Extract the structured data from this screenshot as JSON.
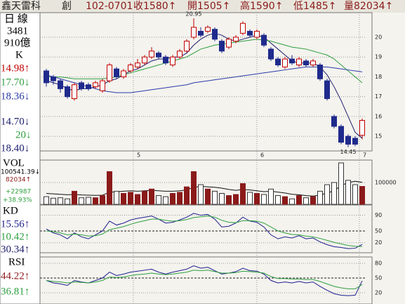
{
  "header": {
    "name": "鑫天雷科",
    "tag": "創",
    "date": "102-0701",
    "close": "收1580↑",
    "open": "開1505↑",
    "high": "高1590↑",
    "low": "低1485↑",
    "volume": "量82034↑"
  },
  "side": {
    "period": "日 線",
    "code": "3481",
    "cap": "910億",
    "k_title": "K",
    "ma1": "14.98↑",
    "ma2": "17.70↓",
    "ma3": "18.36↓",
    "ma4": "14.70↓",
    "ma5": "20↓",
    "ma6": "18.40↓",
    "vol_title": "VOL",
    "vol_avg": "100541.39↓",
    "vol_now": "82034↑",
    "vol_diff": "+22987",
    "vol_pct": "+38.93%",
    "kd_title": "KD",
    "k": "15.56↑",
    "d": "10.42↑",
    "j": "30.34↑",
    "rsi_title": "RSI",
    "rsi1": "44.22↑",
    "rsi2": "36.81↑"
  },
  "chart_data": [
    {
      "type": "candlestick",
      "up_color": "#c00000",
      "down_color": "#1f2a8c",
      "open": [
        18.3,
        18.0,
        17.8,
        17.5,
        16.9,
        17.7,
        17.6,
        17.5,
        17.3,
        17.8,
        18.4,
        18.0,
        18.3,
        18.5,
        18.7,
        19.0,
        19.2,
        19.0,
        18.6,
        19.0,
        19.3,
        20.0,
        20.3,
        20.3,
        20.4,
        19.8,
        19.5,
        19.8,
        20.2,
        20.3,
        20.0,
        20.1,
        19.4,
        18.9,
        18.5,
        18.9,
        18.6,
        18.8,
        18.6,
        18.6,
        17.8,
        16.0,
        15.5,
        15.0,
        14.9,
        15.05
      ],
      "high": [
        18.4,
        18.1,
        17.9,
        17.6,
        17.7,
        17.8,
        17.7,
        17.8,
        17.9,
        18.7,
        18.5,
        18.4,
        18.7,
        18.9,
        19.1,
        19.5,
        19.3,
        19.1,
        19.1,
        19.4,
        19.9,
        20.95,
        20.5,
        20.6,
        20.5,
        19.9,
        20.0,
        20.1,
        20.8,
        20.4,
        20.4,
        20.2,
        19.5,
        19.0,
        19.0,
        19.1,
        19.0,
        18.9,
        18.9,
        18.7,
        17.9,
        16.1,
        15.6,
        15.1,
        15.0,
        15.9
      ],
      "low": [
        17.5,
        17.6,
        17.2,
        16.9,
        16.8,
        17.3,
        17.3,
        17.4,
        17.2,
        17.7,
        17.9,
        17.9,
        18.2,
        18.4,
        18.6,
        18.9,
        18.9,
        18.6,
        18.5,
        18.9,
        19.2,
        19.9,
        20.0,
        20.2,
        19.8,
        19.2,
        19.4,
        19.7,
        20.1,
        20.0,
        19.9,
        19.5,
        18.8,
        18.5,
        18.4,
        18.6,
        18.5,
        18.5,
        18.5,
        17.8,
        16.8,
        15.4,
        14.6,
        14.45,
        14.5,
        14.85
      ],
      "close": [
        17.7,
        17.8,
        17.4,
        17.0,
        17.6,
        17.4,
        17.4,
        17.7,
        17.8,
        18.6,
        18.0,
        18.3,
        18.6,
        18.7,
        19.0,
        19.3,
        19.0,
        18.7,
        19.0,
        19.3,
        19.8,
        20.5,
        20.1,
        20.5,
        19.9,
        19.3,
        19.9,
        20.0,
        20.7,
        20.1,
        20.3,
        19.6,
        18.9,
        18.6,
        18.9,
        18.7,
        18.9,
        18.6,
        18.8,
        17.9,
        16.9,
        15.5,
        14.7,
        14.6,
        14.6,
        15.8
      ],
      "lines": [
        {
          "color": "#1e1e6e",
          "values": [
            17.8,
            17.7,
            17.6,
            17.4,
            17.3,
            17.4,
            17.4,
            17.5,
            17.6,
            17.8,
            17.9,
            18.1,
            18.3,
            18.4,
            18.6,
            18.8,
            18.9,
            18.9,
            19.0,
            19.0,
            19.2,
            19.6,
            19.9,
            20.1,
            20.2,
            20.1,
            19.9,
            19.8,
            19.9,
            20.0,
            20.1,
            20.0,
            19.7,
            19.4,
            19.1,
            18.8,
            18.7,
            18.7,
            18.7,
            18.5,
            18.1,
            17.5,
            16.8,
            16.0,
            15.2,
            14.9
          ]
        },
        {
          "color": "#2e9e3e",
          "values": [
            18.0,
            18.0,
            18.0,
            17.95,
            17.9,
            17.9,
            17.9,
            17.9,
            17.9,
            17.95,
            18.0,
            18.1,
            18.2,
            18.3,
            18.4,
            18.5,
            18.6,
            18.7,
            18.8,
            18.9,
            19.0,
            19.2,
            19.4,
            19.5,
            19.6,
            19.65,
            19.7,
            19.75,
            19.8,
            19.85,
            19.9,
            19.85,
            19.8,
            19.7,
            19.6,
            19.5,
            19.45,
            19.4,
            19.3,
            19.2,
            19.1,
            18.9,
            18.6,
            18.3,
            18.0,
            17.7
          ]
        },
        {
          "color": "#2a3aa8",
          "values": [
            18.1,
            18.0,
            17.9,
            17.8,
            17.7,
            17.6,
            17.5,
            17.4,
            17.3,
            17.25,
            17.2,
            17.2,
            17.2,
            17.25,
            17.3,
            17.35,
            17.4,
            17.45,
            17.5,
            17.55,
            17.6,
            17.7,
            17.75,
            17.8,
            17.85,
            17.9,
            17.95,
            18.0,
            18.05,
            18.1,
            18.15,
            18.2,
            18.25,
            18.3,
            18.35,
            18.4,
            18.45,
            18.5,
            18.5,
            18.5,
            18.5,
            18.45,
            18.4,
            18.35,
            18.3,
            18.25
          ]
        }
      ],
      "annotations": [
        {
          "index": 21,
          "value": 20.95,
          "label": "20.95"
        },
        {
          "index": 43,
          "value": 14.45,
          "label": "14.45"
        }
      ],
      "ylim": [
        14.26,
        21.24
      ],
      "yticks": [
        15,
        16,
        17,
        18,
        19,
        20
      ],
      "xticks": [
        {
          "value": 12.4,
          "label": "5"
        },
        {
          "value": 30,
          "label": "6"
        },
        {
          "value": 44.6,
          "label": "7"
        }
      ]
    },
    {
      "type": "volume",
      "up_color": "#8b1a1a",
      "down_color": "#ffffff",
      "values": [
        35000,
        28000,
        30000,
        25000,
        60000,
        30000,
        32000,
        30000,
        40000,
        150000,
        60000,
        50000,
        55000,
        45000,
        60000,
        70000,
        40000,
        35000,
        50000,
        55000,
        80000,
        150000,
        90000,
        70000,
        60000,
        50000,
        40000,
        45000,
        95000,
        55000,
        50000,
        45000,
        70000,
        40000,
        35000,
        25000,
        40000,
        30000,
        35000,
        60000,
        90000,
        100000,
        190000,
        110000,
        90000,
        82034
      ],
      "ma": [
        {
          "color": "#111111",
          "values": [
            50000,
            48000,
            46000,
            44000,
            45000,
            43000,
            42000,
            41000,
            42000,
            55000,
            58000,
            60000,
            62000,
            60000,
            62000,
            64000,
            62000,
            60000,
            60000,
            62000,
            66000,
            78000,
            82000,
            80000,
            78000,
            74000,
            68000,
            64000,
            68000,
            66000,
            62000,
            58000,
            60000,
            56000,
            52000,
            46000,
            44000,
            40000,
            38000,
            42000,
            52000,
            62000,
            86000,
            100000,
            106000,
            100541
          ]
        }
      ],
      "ylim": [
        0,
        203000
      ],
      "yticks": [
        {
          "value": 100000,
          "label": "100000"
        }
      ]
    },
    {
      "type": "line",
      "series": [
        {
          "color": "#1e1e8e",
          "values": [
            55,
            45,
            40,
            30,
            45,
            35,
            30,
            40,
            50,
            75,
            65,
            70,
            78,
            82,
            85,
            88,
            80,
            70,
            72,
            78,
            85,
            95,
            90,
            92,
            80,
            60,
            62,
            70,
            85,
            75,
            72,
            60,
            40,
            30,
            35,
            32,
            38,
            30,
            32,
            22,
            15,
            10,
            8,
            5,
            6,
            15.56
          ]
        },
        {
          "color": "#2e9e3e",
          "values": [
            50,
            48,
            45,
            40,
            42,
            40,
            37,
            38,
            42,
            53,
            57,
            61,
            67,
            72,
            76,
            80,
            80,
            77,
            75,
            76,
            79,
            84,
            86,
            88,
            85,
            77,
            72,
            71,
            76,
            76,
            75,
            70,
            60,
            50,
            45,
            41,
            40,
            37,
            35,
            31,
            26,
            21,
            17,
            13,
            11,
            10.42
          ]
        }
      ],
      "ylim": [
        -5.5,
        116
      ],
      "yticks": [
        20,
        50,
        90
      ]
    },
    {
      "type": "line",
      "series": [
        {
          "color": "#1e1e8e",
          "values": [
            45,
            40,
            38,
            35,
            45,
            42,
            40,
            45,
            50,
            62,
            55,
            58,
            62,
            64,
            66,
            68,
            62,
            58,
            62,
            65,
            68,
            75,
            70,
            72,
            65,
            58,
            60,
            63,
            70,
            65,
            64,
            58,
            45,
            40,
            42,
            40,
            43,
            40,
            42,
            33,
            25,
            18,
            15,
            14,
            15,
            44.22
          ]
        },
        {
          "color": "#2e9e3e",
          "values": [
            45,
            43,
            42,
            40,
            42,
            41,
            40,
            42,
            45,
            52,
            51,
            52,
            55,
            57,
            58,
            60,
            58,
            57,
            58,
            60,
            62,
            66,
            65,
            66,
            63,
            60,
            60,
            61,
            64,
            63,
            62,
            60,
            53,
            49,
            49,
            48,
            48,
            47,
            47,
            43,
            38,
            33,
            30,
            28,
            28,
            36.81
          ]
        }
      ],
      "ylim": [
        -2.9,
        92.9
      ],
      "yticks": [
        20,
        50,
        80
      ]
    }
  ]
}
